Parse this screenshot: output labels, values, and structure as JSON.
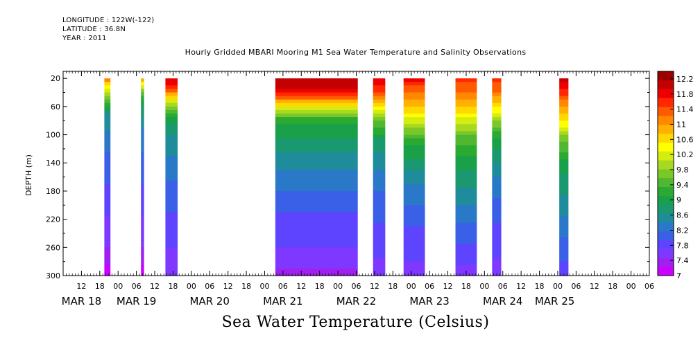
{
  "header": {
    "longitude": "LONGITUDE : 122W(-122)",
    "latitude": "LATITUDE : 36.8N",
    "year": "YEAR : 2011"
  },
  "bottom_label": "Sea Water Temperature (Celsius)",
  "chart_data": {
    "type": "heatmap",
    "title": "Hourly Gridded MBARI Mooring M1 Sea Water Temperature and Salinity Observations",
    "ylabel": "DEPTH (m)",
    "xlabel": "",
    "ylim": [
      300,
      10
    ],
    "x_hour_range": [
      0,
      192
    ],
    "y_ticks": [
      20,
      60,
      100,
      140,
      180,
      220,
      260,
      300
    ],
    "x_ticks": [
      {
        "h": 6,
        "label": "12"
      },
      {
        "h": 12,
        "label": "18"
      },
      {
        "h": 18,
        "label": "00"
      },
      {
        "h": 24,
        "label": "06"
      },
      {
        "h": 30,
        "label": "12"
      },
      {
        "h": 36,
        "label": "18"
      },
      {
        "h": 42,
        "label": "00"
      },
      {
        "h": 48,
        "label": "06"
      },
      {
        "h": 54,
        "label": "12"
      },
      {
        "h": 60,
        "label": "18"
      },
      {
        "h": 66,
        "label": "00"
      },
      {
        "h": 72,
        "label": "06"
      },
      {
        "h": 78,
        "label": "12"
      },
      {
        "h": 84,
        "label": "18"
      },
      {
        "h": 90,
        "label": "00"
      },
      {
        "h": 96,
        "label": "06"
      },
      {
        "h": 102,
        "label": "12"
      },
      {
        "h": 108,
        "label": "18"
      },
      {
        "h": 114,
        "label": "00"
      },
      {
        "h": 120,
        "label": "06"
      },
      {
        "h": 126,
        "label": "12"
      },
      {
        "h": 132,
        "label": "18"
      },
      {
        "h": 138,
        "label": "00"
      },
      {
        "h": 144,
        "label": "06"
      },
      {
        "h": 150,
        "label": "12"
      },
      {
        "h": 156,
        "label": "18"
      },
      {
        "h": 162,
        "label": "00"
      },
      {
        "h": 168,
        "label": "06"
      },
      {
        "h": 174,
        "label": "12"
      },
      {
        "h": 180,
        "label": "18"
      },
      {
        "h": 186,
        "label": "00"
      },
      {
        "h": 192,
        "label": "06"
      }
    ],
    "date_labels": [
      {
        "h": 6,
        "label": "MAR 18"
      },
      {
        "h": 24,
        "label": "MAR 19"
      },
      {
        "h": 48,
        "label": "MAR 20"
      },
      {
        "h": 72,
        "label": "MAR 21"
      },
      {
        "h": 96,
        "label": "MAR 22"
      },
      {
        "h": 120,
        "label": "MAR 23"
      },
      {
        "h": 144,
        "label": "MAR 24"
      },
      {
        "h": 161,
        "label": "MAR 25"
      }
    ],
    "colorbar": {
      "min": 7,
      "max": 12.4,
      "labels": [
        "12.2",
        "11.8",
        "11.4",
        "11",
        "10.6",
        "10.2",
        "9.8",
        "9.4",
        "9",
        "8.6",
        "8.2",
        "7.8",
        "7.4",
        "7"
      ],
      "colors": [
        "#cc00ff",
        "#a020f0",
        "#7f38ff",
        "#5e44ff",
        "#3a60e8",
        "#2a78c8",
        "#1f8c9c",
        "#1a9870",
        "#1aa048",
        "#2aaa30",
        "#50b830",
        "#7ac828",
        "#a8d820",
        "#d4ec10",
        "#ffff00",
        "#ffd800",
        "#ffb000",
        "#ff8800",
        "#ff5a00",
        "#ff2800",
        "#ee0000",
        "#c40000",
        "#9a0000"
      ]
    },
    "segments": [
      {
        "start": 13.5,
        "end": 15.5,
        "profile": [
          [
            20,
            11.2
          ],
          [
            40,
            10.0
          ],
          [
            55,
            9.3
          ],
          [
            70,
            8.6
          ],
          [
            120,
            8.2
          ],
          [
            200,
            7.8
          ],
          [
            270,
            7.4
          ],
          [
            300,
            7.1
          ]
        ]
      },
      {
        "start": 25.5,
        "end": 26.5,
        "profile": [
          [
            20,
            11.0
          ],
          [
            40,
            9.6
          ],
          [
            60,
            8.8
          ],
          [
            100,
            8.3
          ],
          [
            200,
            7.8
          ],
          [
            270,
            7.4
          ],
          [
            300,
            7.1
          ]
        ]
      },
      {
        "start": 33.5,
        "end": 37.5,
        "profile": [
          [
            20,
            12.0
          ],
          [
            35,
            11.4
          ],
          [
            50,
            10.4
          ],
          [
            70,
            9.2
          ],
          [
            100,
            8.6
          ],
          [
            160,
            8.2
          ],
          [
            240,
            7.8
          ],
          [
            300,
            7.5
          ]
        ]
      },
      {
        "start": 69.5,
        "end": 96.5,
        "profile": [
          [
            20,
            12.2
          ],
          [
            40,
            11.8
          ],
          [
            55,
            10.8
          ],
          [
            65,
            10.0
          ],
          [
            80,
            9.2
          ],
          [
            110,
            8.8
          ],
          [
            150,
            8.4
          ],
          [
            200,
            8.0
          ],
          [
            260,
            7.7
          ],
          [
            300,
            7.4
          ]
        ]
      },
      {
        "start": 101.5,
        "end": 105.5,
        "profile": [
          [
            20,
            12.0
          ],
          [
            40,
            11.4
          ],
          [
            60,
            10.6
          ],
          [
            80,
            9.6
          ],
          [
            110,
            8.8
          ],
          [
            160,
            8.3
          ],
          [
            230,
            7.9
          ],
          [
            300,
            7.6
          ]
        ]
      },
      {
        "start": 111.5,
        "end": 118.5,
        "profile": [
          [
            20,
            11.8
          ],
          [
            40,
            11.2
          ],
          [
            60,
            10.8
          ],
          [
            80,
            10.2
          ],
          [
            110,
            9.2
          ],
          [
            160,
            8.5
          ],
          [
            220,
            8.0
          ],
          [
            300,
            7.6
          ]
        ]
      },
      {
        "start": 128.5,
        "end": 135.5,
        "profile": [
          [
            20,
            11.6
          ],
          [
            40,
            11.2
          ],
          [
            60,
            10.8
          ],
          [
            80,
            10.2
          ],
          [
            100,
            9.6
          ],
          [
            140,
            9.0
          ],
          [
            200,
            8.4
          ],
          [
            260,
            7.9
          ],
          [
            300,
            7.6
          ]
        ]
      },
      {
        "start": 140.5,
        "end": 143.5,
        "profile": [
          [
            20,
            11.6
          ],
          [
            40,
            11.2
          ],
          [
            60,
            10.6
          ],
          [
            80,
            9.8
          ],
          [
            110,
            9.0
          ],
          [
            160,
            8.4
          ],
          [
            230,
            7.9
          ],
          [
            300,
            7.6
          ]
        ]
      },
      {
        "start": 162.5,
        "end": 165.5,
        "profile": [
          [
            20,
            12.0
          ],
          [
            40,
            11.6
          ],
          [
            60,
            11.0
          ],
          [
            80,
            10.6
          ],
          [
            100,
            9.8
          ],
          [
            140,
            9.0
          ],
          [
            190,
            8.6
          ],
          [
            240,
            8.2
          ],
          [
            300,
            7.8
          ]
        ]
      }
    ]
  }
}
